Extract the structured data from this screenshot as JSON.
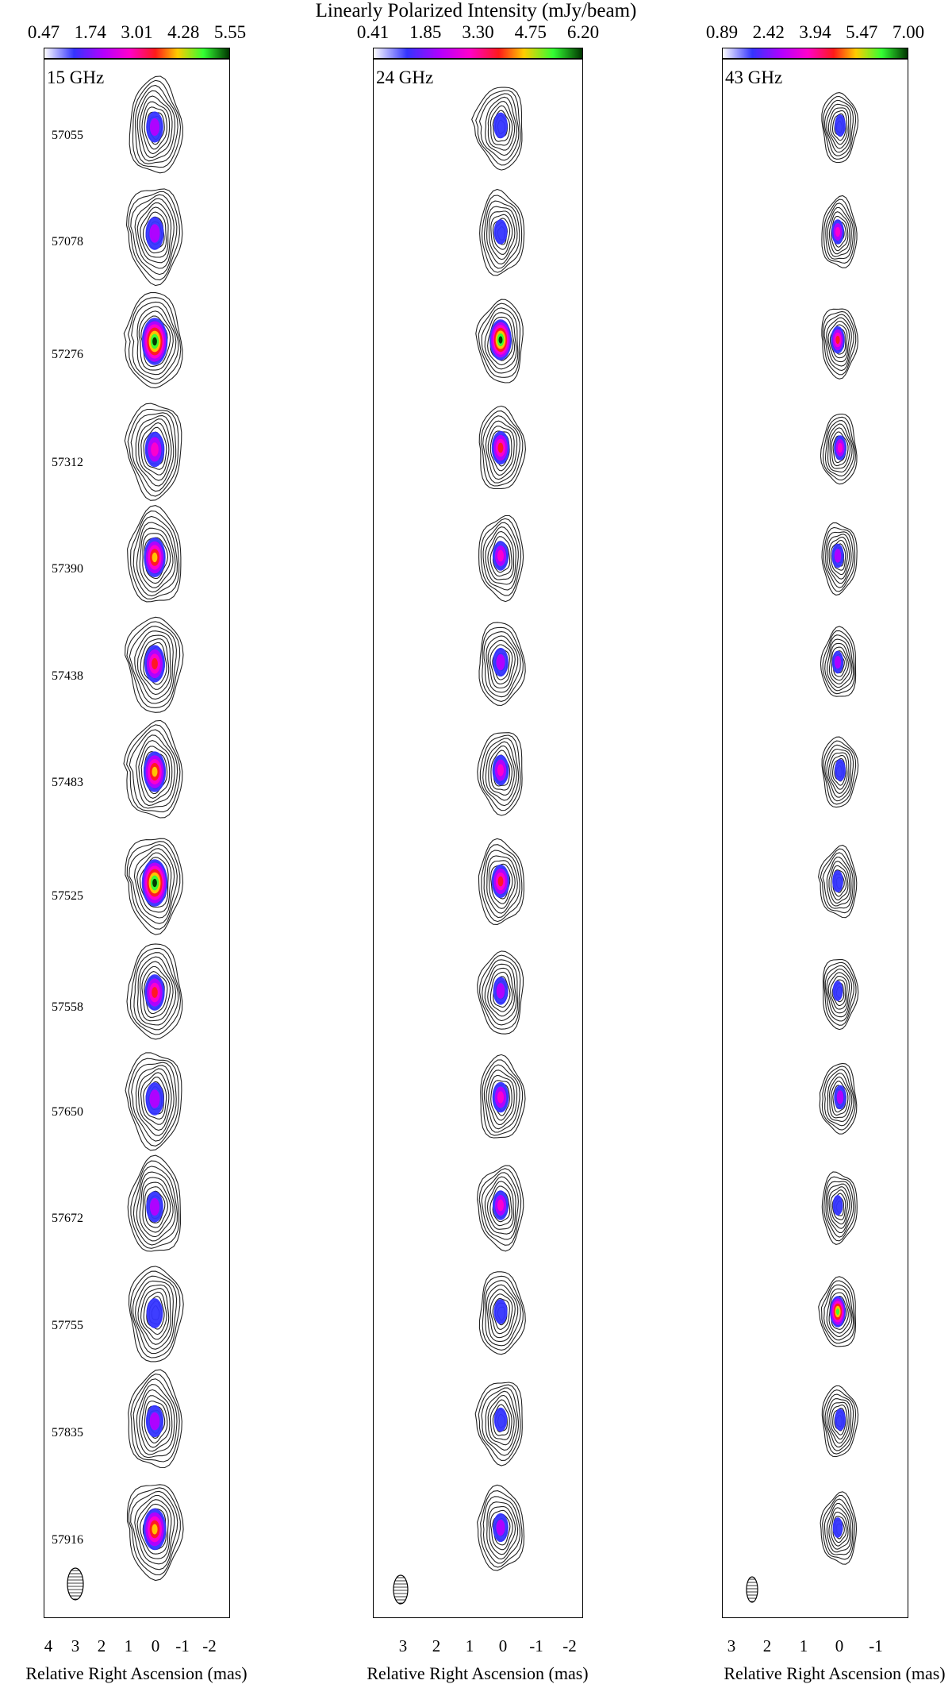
{
  "figure": {
    "title": "Linearly Polarized Intensity (mJy/beam)",
    "panels": [
      {
        "frequency": "15 GHz",
        "colorbar_ticks": [
          "0.47",
          "1.74",
          "3.01",
          "4.28",
          "5.55"
        ],
        "epochs": [
          "57055",
          "57078",
          "57276",
          "57312",
          "57390",
          "57438",
          "57483",
          "57525",
          "57558",
          "57650",
          "57672",
          "57755",
          "57835",
          "57916"
        ],
        "x_ticks": [
          "4",
          "3",
          "2",
          "1",
          "0",
          "-1",
          "-2"
        ],
        "xlabel": "Relative Right Ascension (mas)"
      },
      {
        "frequency": "24 GHz",
        "colorbar_ticks": [
          "0.41",
          "1.85",
          "3.30",
          "4.75",
          "6.20"
        ],
        "x_ticks": [
          "3",
          "2",
          "1",
          "0",
          "-1",
          "-2"
        ],
        "xlabel": "Relative Right Ascension (mas)"
      },
      {
        "frequency": "43 GHz",
        "colorbar_ticks": [
          "0.89",
          "2.42",
          "3.94",
          "5.47",
          "7.00"
        ],
        "x_ticks": [
          "3",
          "2",
          "1",
          "0",
          "-1"
        ],
        "xlabel": "Relative Right Ascension (mas)"
      }
    ]
  },
  "colors": {
    "contour": "#222222",
    "low": "#3434ff",
    "mid_low": "#b400ff",
    "mid": "#ff00cc",
    "mid_high": "#ff1a1a",
    "high": "#ffcc00",
    "very_high": "#33ff33",
    "peak": "#003300"
  }
}
